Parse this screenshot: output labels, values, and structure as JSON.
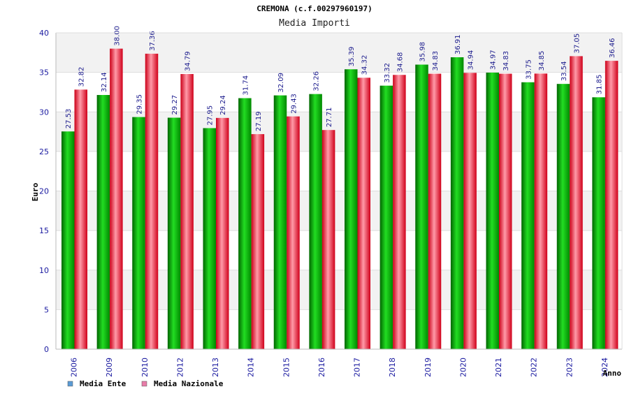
{
  "chart_data": {
    "type": "bar",
    "title": "CREMONA (c.f.00297960197)",
    "subtitle": "Media Importi",
    "xlabel": "Anno",
    "ylabel": "Euro",
    "ylim": [
      0,
      40
    ],
    "yticks": [
      "0",
      "5",
      "10",
      "15",
      "20",
      "25",
      "30",
      "35",
      "40"
    ],
    "grid": true,
    "legend_position": "bottom-left",
    "categories": [
      "2006",
      "2009",
      "2010",
      "2012",
      "2013",
      "2014",
      "2015",
      "2016",
      "2017",
      "2018",
      "2019",
      "2020",
      "2021",
      "2022",
      "2023",
      "2024"
    ],
    "series": [
      {
        "name": "Media Ente",
        "color": "#00aa00",
        "legend_color": "#5b9bd5",
        "values": [
          27.53,
          32.14,
          29.35,
          29.27,
          27.95,
          31.74,
          32.09,
          32.26,
          35.39,
          33.32,
          35.98,
          36.91,
          34.97,
          33.75,
          33.54,
          31.85
        ],
        "labels": [
          "27.53",
          "32.14",
          "29.35",
          "29.27",
          "27.95",
          "31.74",
          "32.09",
          "32.26",
          "35.39",
          "33.32",
          "35.98",
          "36.91",
          "34.97",
          "33.75",
          "33.54",
          "31.85"
        ]
      },
      {
        "name": "Media Nazionale",
        "color": "#e8001c",
        "legend_color": "#e87ca8",
        "values": [
          32.82,
          38.0,
          37.36,
          34.79,
          29.24,
          27.19,
          29.43,
          27.71,
          34.32,
          34.68,
          34.83,
          34.94,
          34.83,
          34.85,
          37.05,
          36.46
        ],
        "labels": [
          "32.82",
          "38.00",
          "37.36",
          "34.79",
          "29.24",
          "27.19",
          "29.43",
          "27.71",
          "34.32",
          "34.68",
          "34.83",
          "34.94",
          "34.83",
          "34.85",
          "37.05",
          "36.46"
        ]
      }
    ]
  }
}
